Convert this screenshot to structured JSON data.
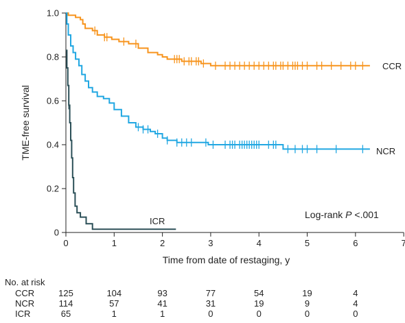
{
  "chart_data": {
    "type": "line",
    "subtype": "kaplan-meier",
    "ylabel": "TME-free survival",
    "xlabel": "Time from date of restaging, y",
    "xlim": [
      0,
      7
    ],
    "ylim": [
      0,
      1.0
    ],
    "x_ticks": [
      "0",
      "1",
      "2",
      "3",
      "4",
      "5",
      "6",
      "7"
    ],
    "y_ticks": [
      "0",
      "0.2",
      "0.4",
      "0.6",
      "0.8",
      "1.0"
    ],
    "grid": false,
    "annotation": {
      "prefix": "Log-rank ",
      "italic": "P",
      "suffix": " <.001"
    },
    "series": [
      {
        "name": "CCR",
        "color": "#f7941d",
        "steps": [
          [
            0,
            1.0
          ],
          [
            0.05,
            0.99
          ],
          [
            0.2,
            0.98
          ],
          [
            0.3,
            0.97
          ],
          [
            0.35,
            0.95
          ],
          [
            0.4,
            0.93
          ],
          [
            0.55,
            0.92
          ],
          [
            0.65,
            0.9
          ],
          [
            0.8,
            0.89
          ],
          [
            0.95,
            0.88
          ],
          [
            1.1,
            0.87
          ],
          [
            1.3,
            0.86
          ],
          [
            1.5,
            0.84
          ],
          [
            1.7,
            0.82
          ],
          [
            1.9,
            0.81
          ],
          [
            2.0,
            0.8
          ],
          [
            2.1,
            0.79
          ],
          [
            2.4,
            0.78
          ],
          [
            2.8,
            0.77
          ],
          [
            3.0,
            0.76
          ],
          [
            6.3,
            0.76
          ]
        ],
        "censors": [
          0.6,
          0.8,
          0.85,
          1.2,
          1.45,
          2.25,
          2.3,
          2.35,
          2.45,
          2.55,
          2.6,
          2.7,
          2.75,
          2.85,
          3.1,
          3.3,
          3.4,
          3.5,
          3.6,
          3.7,
          3.8,
          3.9,
          4.0,
          4.1,
          4.2,
          4.3,
          4.35,
          4.45,
          4.5,
          4.6,
          4.7,
          4.75,
          4.8,
          4.9,
          5.0,
          5.2,
          5.3,
          5.5,
          5.7,
          5.9,
          6.0,
          6.15
        ]
      },
      {
        "name": "NCR",
        "color": "#21a7e2",
        "steps": [
          [
            0,
            1.0
          ],
          [
            0.02,
            0.95
          ],
          [
            0.05,
            0.9
          ],
          [
            0.1,
            0.85
          ],
          [
            0.15,
            0.82
          ],
          [
            0.2,
            0.79
          ],
          [
            0.27,
            0.76
          ],
          [
            0.33,
            0.72
          ],
          [
            0.4,
            0.69
          ],
          [
            0.47,
            0.66
          ],
          [
            0.55,
            0.64
          ],
          [
            0.65,
            0.62
          ],
          [
            0.78,
            0.61
          ],
          [
            0.9,
            0.59
          ],
          [
            1.0,
            0.56
          ],
          [
            1.15,
            0.53
          ],
          [
            1.3,
            0.5
          ],
          [
            1.45,
            0.48
          ],
          [
            1.6,
            0.47
          ],
          [
            1.75,
            0.46
          ],
          [
            1.85,
            0.45
          ],
          [
            2.0,
            0.43
          ],
          [
            2.1,
            0.42
          ],
          [
            2.3,
            0.41
          ],
          [
            2.95,
            0.4
          ],
          [
            4.5,
            0.38
          ],
          [
            6.3,
            0.38
          ]
        ],
        "censors": [
          1.5,
          1.6,
          1.7,
          1.9,
          2.1,
          2.3,
          2.4,
          2.5,
          2.6,
          2.9,
          3.05,
          3.3,
          3.4,
          3.45,
          3.5,
          3.6,
          3.65,
          3.7,
          3.75,
          3.8,
          3.85,
          3.9,
          3.95,
          4.0,
          4.2,
          4.3,
          4.35,
          4.6,
          4.75,
          4.9,
          5.0,
          5.2,
          5.6,
          6.15
        ]
      },
      {
        "name": "ICR",
        "color": "#2b4f57",
        "steps": [
          [
            0,
            0.83
          ],
          [
            0.02,
            0.75
          ],
          [
            0.04,
            0.67
          ],
          [
            0.06,
            0.58
          ],
          [
            0.08,
            0.5
          ],
          [
            0.1,
            0.42
          ],
          [
            0.12,
            0.34
          ],
          [
            0.14,
            0.25
          ],
          [
            0.16,
            0.18
          ],
          [
            0.19,
            0.12
          ],
          [
            0.23,
            0.09
          ],
          [
            0.3,
            0.07
          ],
          [
            0.42,
            0.04
          ],
          [
            0.55,
            0.015
          ],
          [
            2.28,
            0.015
          ]
        ],
        "censors": [
          0.06
        ]
      }
    ],
    "risk_table": {
      "title": "No. at risk",
      "times": [
        0,
        1,
        2,
        3,
        4,
        5,
        6
      ],
      "rows": [
        {
          "label": "CCR",
          "values": [
            "125",
            "104",
            "93",
            "77",
            "54",
            "19",
            "4"
          ]
        },
        {
          "label": "NCR",
          "values": [
            "114",
            "57",
            "41",
            "31",
            "19",
            "9",
            "4"
          ]
        },
        {
          "label": "ICR",
          "values": [
            "65",
            "1",
            "1",
            "0",
            "0",
            "0",
            "0"
          ]
        }
      ]
    }
  }
}
